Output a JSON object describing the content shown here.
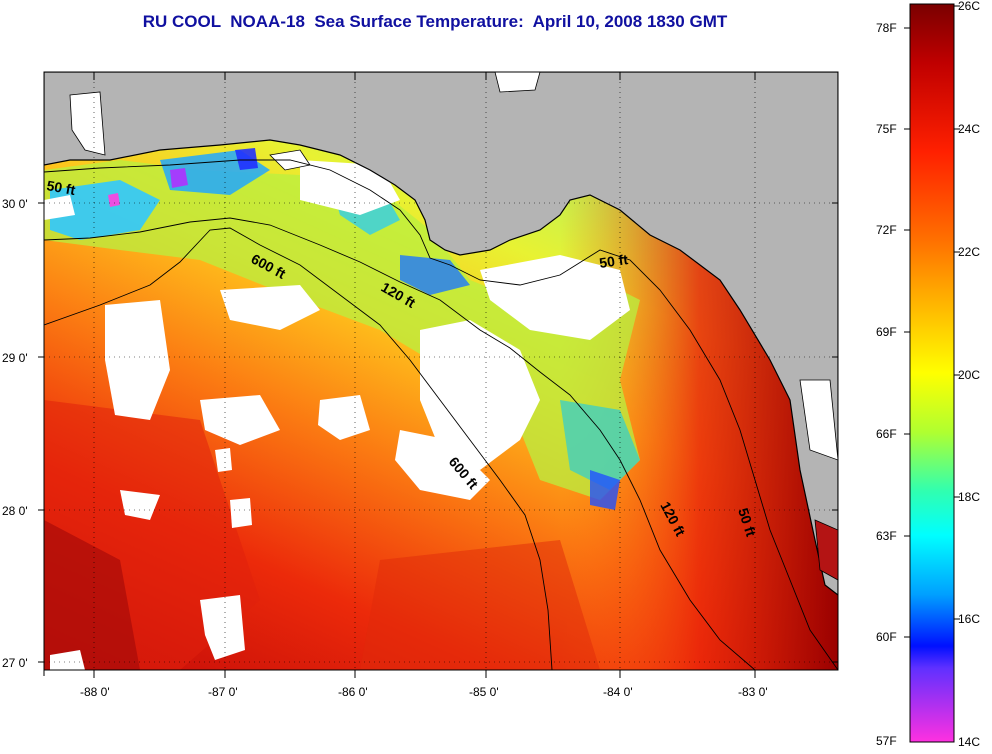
{
  "title": "RU COOL  NOAA-18  Sea Surface Temperature:  April 10, 2008 1830 GMT",
  "map": {
    "lon_ticks": [
      "-88 0'",
      "-87 0'",
      "-86 0'",
      "-85 0'",
      "-84 0'",
      "-83 0'"
    ],
    "lat_ticks": [
      "30 0'",
      "29 0'",
      "28 0'",
      "27 0'"
    ],
    "contour_labels": [
      "50 ft",
      "600 ft",
      "120 ft",
      "50 ft",
      "600 ft",
      "120 ft",
      "50 ft"
    ],
    "colors": {
      "land": "#b4b4b4",
      "cloud": "#ffffff",
      "coast": "#000000"
    }
  },
  "colorbar": {
    "fahrenheit_labels": [
      "78F",
      "75F",
      "72F",
      "69F",
      "66F",
      "63F",
      "60F",
      "57F"
    ],
    "celsius_labels": [
      "26C",
      "24C",
      "22C",
      "20C",
      "18C",
      "16C",
      "14C"
    ],
    "range_c": [
      14,
      26
    ],
    "colors_top_to_bottom": [
      "#7a0000",
      "#ff0000",
      "#ff8000",
      "#ffd000",
      "#ffff00",
      "#80ff40",
      "#00ffff",
      "#0080ff",
      "#0000ff",
      "#8040ff",
      "#ff40ff"
    ]
  }
}
